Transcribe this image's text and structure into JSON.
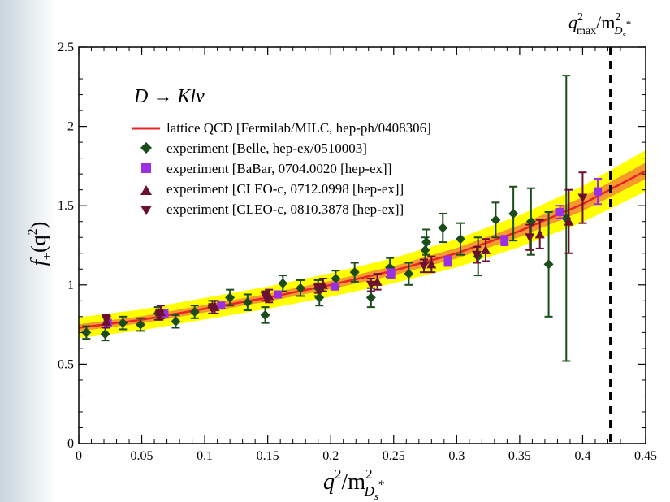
{
  "chart_data": {
    "type": "scatter",
    "title_text": "D → Klν",
    "xlabel": {
      "base": "q",
      "sup": "2",
      "mid": "/m",
      "sup2": "2",
      "sub": "D",
      "subsub": "s",
      "star": "*"
    },
    "ylabel": {
      "base": "f",
      "sub": "+",
      "open": "(q",
      "sup": "2",
      "close": ")"
    },
    "xlim": [
      0,
      0.45
    ],
    "ylim": [
      0,
      2.5
    ],
    "x_ticks": [
      "0",
      "0.05",
      "0.1",
      "0.15",
      "0.2",
      "0.25",
      "0.3",
      "0.35",
      "0.4",
      "0.45"
    ],
    "y_ticks": [
      "0",
      "0.5",
      "1",
      "1.5",
      "2",
      "2.5"
    ],
    "qmax_x": 0.422,
    "qmax_label": {
      "base": "q",
      "sup": "2",
      "sub": "max",
      "mid": "/m",
      "sup2": "2",
      "msub": "D",
      "subsub": "s",
      "star": "*"
    },
    "legend_position": "upper-left",
    "lattice": {
      "name": "lattice QCD [Fermilab/MILC, hep-ph/0408306]",
      "color": "#e8242a",
      "inner_band_color": "#f59a2c",
      "outer_band_color": "#ffff00",
      "curve": [
        {
          "x": 0.0,
          "y": 0.73,
          "inner": 0.022,
          "outer": 0.065
        },
        {
          "x": 0.05,
          "y": 0.78,
          "inner": 0.022,
          "outer": 0.066
        },
        {
          "x": 0.1,
          "y": 0.85,
          "inner": 0.023,
          "outer": 0.068
        },
        {
          "x": 0.15,
          "y": 0.92,
          "inner": 0.024,
          "outer": 0.07
        },
        {
          "x": 0.2,
          "y": 1.0,
          "inner": 0.026,
          "outer": 0.074
        },
        {
          "x": 0.25,
          "y": 1.09,
          "inner": 0.029,
          "outer": 0.08
        },
        {
          "x": 0.3,
          "y": 1.2,
          "inner": 0.033,
          "outer": 0.089
        },
        {
          "x": 0.35,
          "y": 1.34,
          "inner": 0.038,
          "outer": 0.1
        },
        {
          "x": 0.4,
          "y": 1.51,
          "inner": 0.044,
          "outer": 0.114
        },
        {
          "x": 0.45,
          "y": 1.72,
          "inner": 0.052,
          "outer": 0.13
        }
      ]
    },
    "series": [
      {
        "name": "experiment [Belle, hep-ex/0510003]",
        "marker": "diamond",
        "color": "#1a4d1a",
        "points": [
          {
            "x": 0.006,
            "y": 0.7,
            "err": 0.04
          },
          {
            "x": 0.021,
            "y": 0.69,
            "err": 0.04
          },
          {
            "x": 0.035,
            "y": 0.76,
            "err": 0.04
          },
          {
            "x": 0.049,
            "y": 0.75,
            "err": 0.04
          },
          {
            "x": 0.063,
            "y": 0.82,
            "err": 0.04
          },
          {
            "x": 0.077,
            "y": 0.77,
            "err": 0.04
          },
          {
            "x": 0.092,
            "y": 0.83,
            "err": 0.04
          },
          {
            "x": 0.106,
            "y": 0.86,
            "err": 0.04
          },
          {
            "x": 0.12,
            "y": 0.92,
            "err": 0.05
          },
          {
            "x": 0.134,
            "y": 0.89,
            "err": 0.05
          },
          {
            "x": 0.148,
            "y": 0.81,
            "err": 0.05
          },
          {
            "x": 0.162,
            "y": 1.01,
            "err": 0.05
          },
          {
            "x": 0.176,
            "y": 0.98,
            "err": 0.05
          },
          {
            "x": 0.19,
            "y": 0.98,
            "err": 0.05
          },
          {
            "x": 0.191,
            "y": 0.92,
            "err": 0.05
          },
          {
            "x": 0.204,
            "y": 1.04,
            "err": 0.05
          },
          {
            "x": 0.219,
            "y": 1.08,
            "err": 0.06
          },
          {
            "x": 0.232,
            "y": 0.92,
            "err": 0.06
          },
          {
            "x": 0.247,
            "y": 1.11,
            "err": 0.06
          },
          {
            "x": 0.262,
            "y": 1.07,
            "err": 0.07
          },
          {
            "x": 0.275,
            "y": 1.22,
            "err": 0.08
          },
          {
            "x": 0.276,
            "y": 1.27,
            "err": 0.08
          },
          {
            "x": 0.289,
            "y": 1.36,
            "err": 0.09
          },
          {
            "x": 0.303,
            "y": 1.29,
            "err": 0.1
          },
          {
            "x": 0.317,
            "y": 1.18,
            "err": 0.12
          },
          {
            "x": 0.331,
            "y": 1.41,
            "err": 0.11
          },
          {
            "x": 0.345,
            "y": 1.45,
            "err": 0.17
          },
          {
            "x": 0.359,
            "y": 1.4,
            "err": 0.21
          },
          {
            "x": 0.373,
            "y": 1.13,
            "err": 0.33
          },
          {
            "x": 0.387,
            "y": 1.42,
            "err": 0.9
          }
        ]
      },
      {
        "name": "experiment [BaBar, 0704.0020 [hep-ex]]",
        "marker": "square",
        "color": "#9b30e0",
        "points": [
          {
            "x": 0.023,
            "y": 0.76,
            "err": 0.02
          },
          {
            "x": 0.068,
            "y": 0.82,
            "err": 0.02
          },
          {
            "x": 0.113,
            "y": 0.87,
            "err": 0.02
          },
          {
            "x": 0.158,
            "y": 0.94,
            "err": 0.02
          },
          {
            "x": 0.203,
            "y": 0.99,
            "err": 0.02
          },
          {
            "x": 0.248,
            "y": 1.07,
            "err": 0.03
          },
          {
            "x": 0.293,
            "y": 1.15,
            "err": 0.03
          },
          {
            "x": 0.338,
            "y": 1.28,
            "err": 0.03
          },
          {
            "x": 0.382,
            "y": 1.46,
            "err": 0.04
          },
          {
            "x": 0.412,
            "y": 1.59,
            "err": 0.08
          }
        ]
      },
      {
        "name": "experiment [CLEO-c, 0712.0998 [hep-ex]]",
        "marker": "triangle-up",
        "color": "#6b1030",
        "points": [
          {
            "x": 0.022,
            "y": 0.77,
            "err": 0.04
          },
          {
            "x": 0.065,
            "y": 0.83,
            "err": 0.04
          },
          {
            "x": 0.108,
            "y": 0.86,
            "err": 0.04
          },
          {
            "x": 0.151,
            "y": 0.93,
            "err": 0.04
          },
          {
            "x": 0.194,
            "y": 1.0,
            "err": 0.04
          },
          {
            "x": 0.237,
            "y": 1.02,
            "err": 0.05
          },
          {
            "x": 0.28,
            "y": 1.13,
            "err": 0.05
          },
          {
            "x": 0.323,
            "y": 1.22,
            "err": 0.07
          },
          {
            "x": 0.366,
            "y": 1.32,
            "err": 0.09
          },
          {
            "x": 0.389,
            "y": 1.4,
            "err": 0.2
          }
        ]
      },
      {
        "name": "experiment [CLEO-c, 0810.3878 [hep-ex]]",
        "marker": "triangle-down",
        "color": "#6b1030",
        "points": [
          {
            "x": 0.022,
            "y": 0.78,
            "err": 0.03
          },
          {
            "x": 0.064,
            "y": 0.81,
            "err": 0.03
          },
          {
            "x": 0.106,
            "y": 0.85,
            "err": 0.03
          },
          {
            "x": 0.148,
            "y": 0.93,
            "err": 0.03
          },
          {
            "x": 0.19,
            "y": 0.98,
            "err": 0.03
          },
          {
            "x": 0.232,
            "y": 1.0,
            "err": 0.04
          },
          {
            "x": 0.274,
            "y": 1.12,
            "err": 0.04
          },
          {
            "x": 0.316,
            "y": 1.19,
            "err": 0.05
          },
          {
            "x": 0.358,
            "y": 1.3,
            "err": 0.08
          },
          {
            "x": 0.4,
            "y": 1.55,
            "err": 0.16
          }
        ]
      }
    ]
  }
}
